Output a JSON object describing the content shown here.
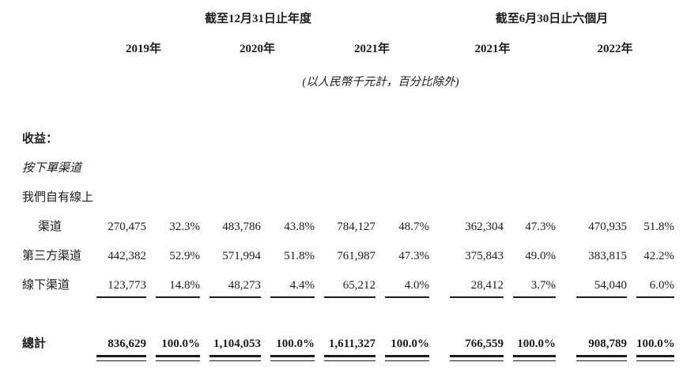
{
  "page": {
    "background": "#ffffff",
    "text_color": "#1c1c1c"
  },
  "header": {
    "annual_caption": "截至12月31日止年度",
    "interim_caption": "截至6月30日止六個月",
    "years": [
      "2019年",
      "2020年",
      "2021年",
      "2021年",
      "2022年"
    ],
    "unit_note": "(以人民幣千元計，百分比除外)"
  },
  "body": {
    "section_title": "收益：",
    "group_title": "按下單渠道",
    "rows": [
      {
        "label": "我們自有線上",
        "values": []
      },
      {
        "label": "渠道",
        "values": [
          "270,475",
          "32.3%",
          "483,786",
          "43.8%",
          "784,127",
          "48.7%",
          "362,304",
          "47.3%",
          "470,935",
          "51.8%"
        ]
      },
      {
        "label": "第三方渠道",
        "values": [
          "442,382",
          "52.9%",
          "571,994",
          "51.8%",
          "761,987",
          "47.3%",
          "375,843",
          "49.0%",
          "383,815",
          "42.2%"
        ]
      },
      {
        "label": "線下渠道",
        "values": [
          "123,773",
          "14.8%",
          "48,273",
          "4.4%",
          "65,212",
          "4.0%",
          "28,412",
          "3.7%",
          "54,040",
          "6.0%"
        ]
      }
    ],
    "total": {
      "label": "總計",
      "values": [
        "836,629",
        "100.0%",
        "1,104,053",
        "100.0%",
        "1,611,327",
        "100.0%",
        "766,559",
        "100.0%",
        "908,789",
        "100.0%"
      ]
    }
  }
}
